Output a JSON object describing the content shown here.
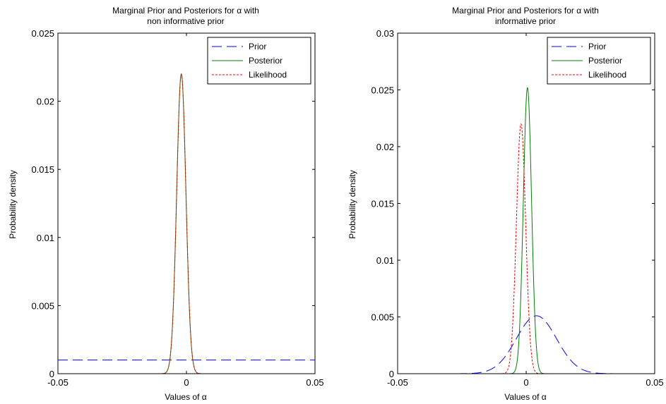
{
  "chart_data": [
    {
      "type": "line",
      "title_line1": "Marginal Prior and Posteriors for α with",
      "title_line2": "non informative prior",
      "xlabel": "Values of α",
      "ylabel": "Probability density",
      "xlim": [
        -0.05,
        0.05
      ],
      "ylim": [
        0,
        0.025
      ],
      "x_ticks": [
        -0.05,
        0,
        0.05
      ],
      "x_tick_labels": [
        "-0.05",
        "0",
        "0.05"
      ],
      "y_ticks": [
        0,
        0.005,
        0.01,
        0.015,
        0.02,
        0.025
      ],
      "y_tick_labels": [
        "0",
        "0.005",
        "0.01",
        "0.015",
        "0.02",
        "0.025"
      ],
      "grid": false,
      "legend_position": "top-right",
      "series": [
        {
          "name": "Prior",
          "color": "#0000ff",
          "style": "dashed",
          "kind": "flat",
          "value": 0.001,
          "x_range": [
            -0.05,
            0.05
          ]
        },
        {
          "name": "Posterior",
          "color": "#008000",
          "style": "solid",
          "kind": "gaussian",
          "peak": 0.022,
          "mu": -0.002,
          "sigma": 0.0018,
          "x_range": [
            -0.026,
            0.023
          ]
        },
        {
          "name": "Likelihood",
          "color": "#ff0000",
          "style": "dotted",
          "kind": "gaussian",
          "peak": 0.022,
          "mu": -0.002,
          "sigma": 0.0018,
          "x_range": [
            -0.026,
            0.023
          ]
        }
      ]
    },
    {
      "type": "line",
      "title_line1": "Marginal Prior and Posteriors for α with",
      "title_line2": "informative prior",
      "xlabel": "Values of α",
      "ylabel": "Probability density",
      "xlim": [
        -0.05,
        0.05
      ],
      "ylim": [
        0,
        0.03
      ],
      "x_ticks": [
        -0.05,
        0,
        0.05
      ],
      "x_tick_labels": [
        "-0.05",
        "0",
        "0.05"
      ],
      "y_ticks": [
        0,
        0.005,
        0.01,
        0.015,
        0.02,
        0.025,
        0.03
      ],
      "y_tick_labels": [
        "0",
        "0.005",
        "0.01",
        "0.015",
        "0.02",
        "0.025",
        "0.03"
      ],
      "grid": false,
      "legend_position": "top-right",
      "series": [
        {
          "name": "Prior",
          "color": "#0000ff",
          "style": "dashed",
          "kind": "gaussian",
          "peak": 0.0051,
          "mu": 0.004,
          "sigma": 0.0078,
          "x_range": [
            -0.05,
            0.05
          ]
        },
        {
          "name": "Posterior",
          "color": "#008000",
          "style": "solid",
          "kind": "gaussian",
          "peak": 0.0252,
          "mu": 0.0005,
          "sigma": 0.0016,
          "x_range": [
            -0.026,
            0.023
          ]
        },
        {
          "name": "Likelihood",
          "color": "#ff0000",
          "style": "dotted",
          "kind": "gaussian",
          "peak": 0.022,
          "mu": -0.002,
          "sigma": 0.0018,
          "x_range": [
            -0.026,
            0.023
          ]
        }
      ]
    }
  ]
}
